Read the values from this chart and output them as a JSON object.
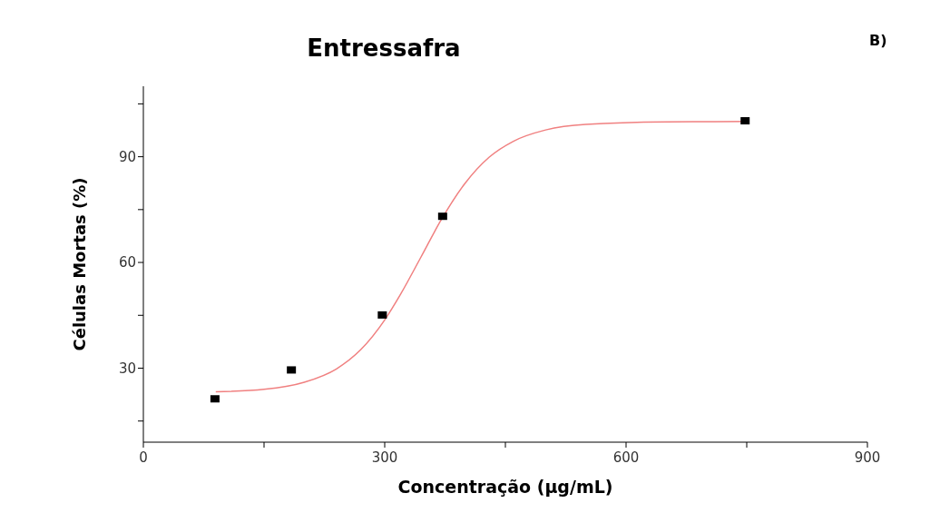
{
  "chart_data": {
    "type": "scatter",
    "title": "Entressafra",
    "xlabel": "Concentração (µg/mL)",
    "ylabel": "Células Mortas (%)",
    "annotations": [
      "B)"
    ],
    "xlim": [
      0,
      900
    ],
    "xticks": [
      0,
      {
        "value": 150,
        "label": null
      },
      300,
      {
        "value": 450,
        "label": null
      },
      600,
      {
        "value": 750,
        "label": null
      },
      900
    ],
    "ylim": [
      9,
      110
    ],
    "yticks": [
      {
        "value": 15,
        "label": null
      },
      30,
      {
        "value": 45,
        "label": null
      },
      60,
      {
        "value": 75,
        "label": null
      },
      90,
      {
        "value": 105,
        "label": null
      }
    ],
    "grid": false,
    "legend": false,
    "series": [
      {
        "color": "#000000",
        "marker": "square",
        "x": [
          89,
          184,
          297,
          372,
          748
        ],
        "values": [
          21.3,
          29.5,
          45.1,
          73.1,
          100.2
        ]
      },
      {
        "type": "line",
        "color": "#f08080",
        "marker": "none",
        "line_style": "solid",
        "x": [
          90,
          150,
          200,
          240,
          270,
          300,
          320,
          345,
          370,
          400,
          430,
          460,
          500,
          550,
          650,
          750
        ],
        "values": [
          23.3,
          24.0,
          26.0,
          29.8,
          35.2,
          43.7,
          51.1,
          61.5,
          72.0,
          82.5,
          89.9,
          94.4,
          97.6,
          99.2,
          99.9,
          100.0
        ]
      }
    ]
  }
}
